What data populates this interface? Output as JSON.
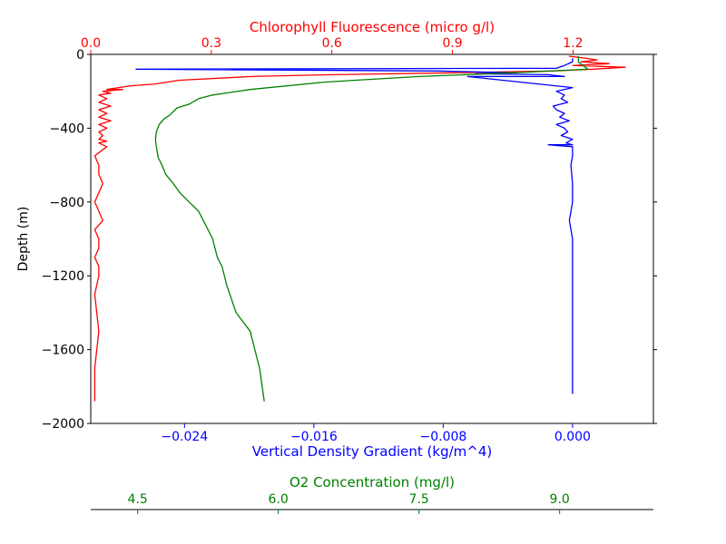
{
  "chart_data": {
    "type": "line",
    "ylabel": "Depth (m)",
    "ylim": [
      -2000,
      0
    ],
    "y_ticks": [
      0,
      -400,
      -800,
      -1200,
      -1600,
      -2000
    ],
    "y_tick_labels": [
      "0",
      "−400",
      "−800",
      "−1200",
      "−1600",
      "−2000"
    ],
    "grid": false,
    "axes": [
      {
        "id": "chlorophyll",
        "position": "top",
        "label": "Chlorophyll Fluorescence (micro g/l)",
        "color": "#ff0000",
        "xlim": [
          0.0,
          1.4
        ],
        "ticks": [
          0.0,
          0.3,
          0.6,
          0.9,
          1.2
        ],
        "tick_labels": [
          "0.0",
          "0.3",
          "0.6",
          "0.9",
          "1.2"
        ]
      },
      {
        "id": "density",
        "position": "bottom",
        "label": "Vertical Density Gradient (kg/m^4)",
        "color": "#0000ff",
        "xlim": [
          -0.0298,
          0.005
        ],
        "ticks": [
          -0.024,
          -0.016,
          -0.008,
          0.0
        ],
        "tick_labels": [
          "−0.024",
          "−0.016",
          "−0.008",
          "0.000"
        ]
      },
      {
        "id": "oxygen",
        "position": "bottom-offset",
        "label": "O2 Concentration (mg/l)",
        "color": "#008000",
        "xlim": [
          4.0,
          10.0
        ],
        "ticks": [
          4.5,
          6.0,
          7.5,
          9.0
        ],
        "tick_labels": [
          "4.5",
          "6.0",
          "7.5",
          "9.0"
        ]
      }
    ],
    "series": [
      {
        "axis": "chlorophyll",
        "color": "#ff0000",
        "x": [
          1.19,
          1.23,
          1.26,
          1.22,
          1.29,
          1.2,
          1.33,
          1.25,
          1.15,
          0.9,
          0.6,
          0.4,
          0.22,
          0.16,
          0.1,
          0.07,
          0.04,
          0.08,
          0.03,
          0.05,
          0.02,
          0.04,
          0.02,
          0.05,
          0.02,
          0.04,
          0.02,
          0.05,
          0.02,
          0.04,
          0.02,
          0.03,
          0.02,
          0.04,
          0.02,
          0.04,
          0.01,
          0.02,
          0.02,
          0.03,
          0.02,
          0.01,
          0.02,
          0.03,
          0.01,
          0.02,
          0.02,
          0.01,
          0.02,
          0.02,
          0.01,
          0.02,
          0.01,
          0.01
        ],
        "y": [
          -10,
          -20,
          -30,
          -40,
          -50,
          -60,
          -70,
          -80,
          -90,
          -100,
          -110,
          -120,
          -140,
          -160,
          -170,
          -180,
          -190,
          -190,
          -200,
          -210,
          -220,
          -240,
          -260,
          -280,
          -300,
          -320,
          -340,
          -360,
          -380,
          -400,
          -420,
          -440,
          -460,
          -470,
          -480,
          -500,
          -550,
          -600,
          -650,
          -700,
          -750,
          -800,
          -850,
          -900,
          -950,
          -1000,
          -1050,
          -1100,
          -1150,
          -1200,
          -1300,
          -1500,
          -1700,
          -1880
        ]
      },
      {
        "axis": "density",
        "color": "#0000ff",
        "x": [
          0.0,
          0.0,
          -0.0005,
          -0.001,
          -0.027,
          -0.0083,
          -0.0035,
          -0.006,
          -0.0015,
          -0.0005,
          -0.0065,
          0.0,
          -0.001,
          -0.0005,
          -0.0007,
          -0.0003,
          -0.0012,
          -0.001,
          -0.0005,
          -0.0008,
          -0.0002,
          -0.001,
          -0.0005,
          -0.0003,
          -0.0007,
          0.0,
          -0.0004,
          -0.0002,
          0.0,
          -0.0015,
          0.0,
          0.0,
          -0.0001,
          0.0,
          0.0,
          -0.0002,
          0.0,
          0.0,
          0.0,
          0.0,
          0.0,
          0.0,
          0.0
        ],
        "y": [
          -20,
          -40,
          -60,
          -75,
          -80,
          -90,
          -100,
          -105,
          -110,
          -120,
          -120,
          -180,
          -200,
          -220,
          -240,
          -260,
          -280,
          -300,
          -320,
          -340,
          -360,
          -380,
          -400,
          -420,
          -440,
          -460,
          -480,
          -485,
          -490,
          -490,
          -500,
          -550,
          -600,
          -700,
          -800,
          -900,
          -1000,
          -1200,
          -1400,
          -1600,
          -1700,
          -1800,
          -1840
        ]
      },
      {
        "axis": "oxygen",
        "color": "#008000",
        "x": [
          9.2,
          9.2,
          9.3,
          8.5,
          7.5,
          6.5,
          5.7,
          5.3,
          5.15,
          5.05,
          4.92,
          4.88,
          4.84,
          4.78,
          4.73,
          4.7,
          4.69,
          4.7,
          4.72,
          4.76,
          4.8,
          4.88,
          4.95,
          5.05,
          5.15,
          5.25,
          5.3,
          5.35,
          5.4,
          5.45,
          5.55,
          5.7,
          5.75,
          5.8,
          5.85
        ],
        "y": [
          -10,
          -40,
          -80,
          -100,
          -120,
          -150,
          -190,
          -220,
          -240,
          -270,
          -290,
          -310,
          -330,
          -350,
          -380,
          -420,
          -460,
          -500,
          -560,
          -600,
          -650,
          -700,
          -750,
          -800,
          -850,
          -950,
          -1000,
          -1100,
          -1150,
          -1250,
          -1400,
          -1500,
          -1600,
          -1700,
          -1880
        ]
      }
    ]
  }
}
